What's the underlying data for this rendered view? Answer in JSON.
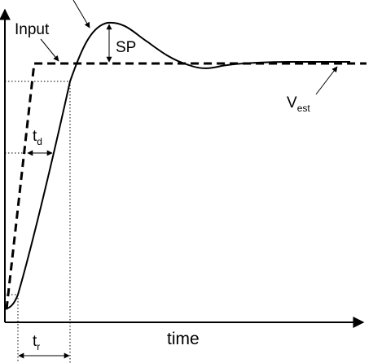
{
  "labels": {
    "input": "Input",
    "overshoot": "SP",
    "delay": "t",
    "delay_sub": "d",
    "rise": "t",
    "rise_sub": "r",
    "steady": "V",
    "steady_sub": "est",
    "x_axis": "time"
  },
  "colors": {
    "ink": "#000000",
    "background": "#ffffff"
  }
}
